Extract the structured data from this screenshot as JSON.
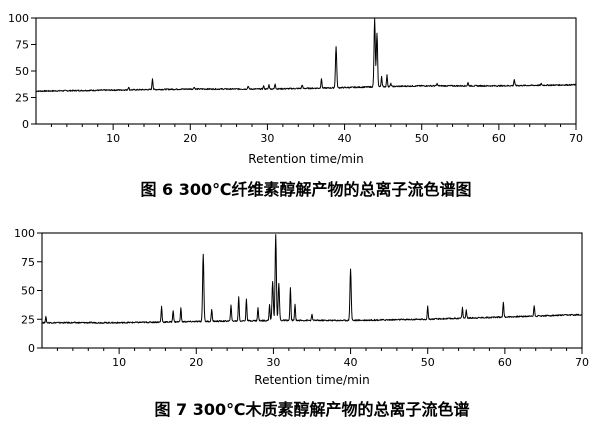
{
  "chart_data": [
    {
      "type": "line",
      "caption": "图 6  300℃纤维素醇解产物的总离子流色谱图",
      "xlabel": "Retention time/min",
      "ylabel": "",
      "xlim": [
        0,
        70
      ],
      "ylim": [
        0,
        100
      ],
      "x_ticks": [
        10,
        20,
        30,
        40,
        50,
        60,
        70
      ],
      "y_ticks": [
        0,
        25,
        50,
        75,
        100
      ],
      "grid": false,
      "baseline": [
        [
          0,
          31
        ],
        [
          10,
          32
        ],
        [
          20,
          33
        ],
        [
          30,
          33
        ],
        [
          38,
          34
        ],
        [
          43.5,
          35
        ],
        [
          50,
          36
        ],
        [
          60,
          36
        ],
        [
          70,
          37
        ]
      ],
      "peaks": [
        {
          "x": 12.0,
          "y": 35
        },
        {
          "x": 15.1,
          "y": 43
        },
        {
          "x": 20.5,
          "y": 35
        },
        {
          "x": 27.5,
          "y": 36
        },
        {
          "x": 29.5,
          "y": 36
        },
        {
          "x": 30.2,
          "y": 37
        },
        {
          "x": 31.0,
          "y": 38
        },
        {
          "x": 34.5,
          "y": 37
        },
        {
          "x": 37.0,
          "y": 43
        },
        {
          "x": 38.9,
          "y": 73
        },
        {
          "x": 43.9,
          "y": 99
        },
        {
          "x": 44.2,
          "y": 86
        },
        {
          "x": 44.8,
          "y": 45
        },
        {
          "x": 45.5,
          "y": 46
        },
        {
          "x": 46.0,
          "y": 38
        },
        {
          "x": 52.0,
          "y": 38
        },
        {
          "x": 56.0,
          "y": 39
        },
        {
          "x": 62.0,
          "y": 42
        },
        {
          "x": 65.5,
          "y": 38
        }
      ]
    },
    {
      "type": "line",
      "caption": "图 7  300℃木质素醇解产物的总离子流色谱",
      "xlabel": "Retention time/min",
      "ylabel": "",
      "xlim": [
        0,
        70
      ],
      "ylim": [
        0,
        100
      ],
      "x_ticks": [
        10,
        20,
        30,
        40,
        50,
        60,
        70
      ],
      "y_ticks": [
        0,
        25,
        50,
        75,
        100
      ],
      "grid": false,
      "baseline": [
        [
          0,
          22
        ],
        [
          10,
          22
        ],
        [
          20,
          23
        ],
        [
          30,
          24
        ],
        [
          40,
          24
        ],
        [
          50,
          25
        ],
        [
          60,
          27
        ],
        [
          70,
          29
        ]
      ],
      "peaks": [
        {
          "x": 0.5,
          "y": 27
        },
        {
          "x": 15.5,
          "y": 36
        },
        {
          "x": 17.0,
          "y": 33
        },
        {
          "x": 18.0,
          "y": 35
        },
        {
          "x": 20.9,
          "y": 82
        },
        {
          "x": 22.0,
          "y": 34
        },
        {
          "x": 24.5,
          "y": 38
        },
        {
          "x": 25.5,
          "y": 45
        },
        {
          "x": 26.5,
          "y": 43
        },
        {
          "x": 28.0,
          "y": 35
        },
        {
          "x": 29.5,
          "y": 38
        },
        {
          "x": 29.9,
          "y": 58
        },
        {
          "x": 30.3,
          "y": 99
        },
        {
          "x": 30.7,
          "y": 56
        },
        {
          "x": 32.2,
          "y": 53
        },
        {
          "x": 32.8,
          "y": 38
        },
        {
          "x": 35.0,
          "y": 29
        },
        {
          "x": 40.0,
          "y": 69
        },
        {
          "x": 50.0,
          "y": 36
        },
        {
          "x": 54.5,
          "y": 35
        },
        {
          "x": 55.0,
          "y": 33
        },
        {
          "x": 59.8,
          "y": 40
        },
        {
          "x": 63.8,
          "y": 37
        }
      ]
    }
  ]
}
